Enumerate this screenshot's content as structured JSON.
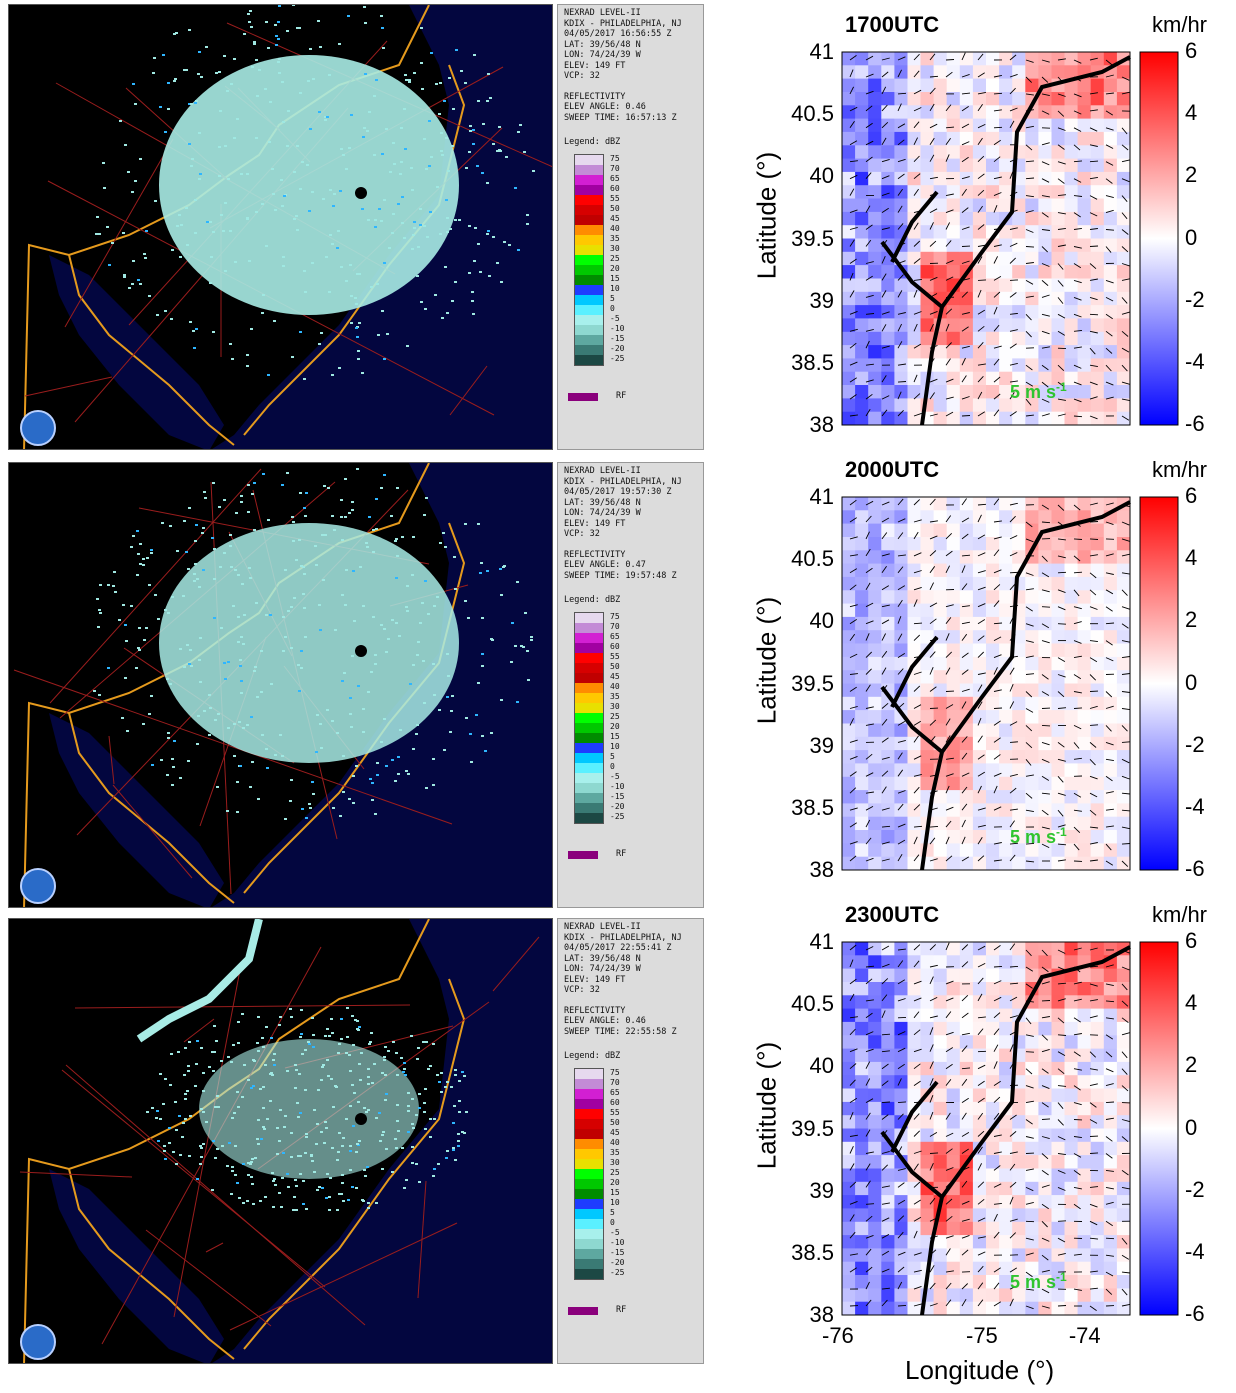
{
  "radar": {
    "header": "NEXRAD LEVEL-II",
    "station": "KDIX - PHILADELPHIA, NJ",
    "lat": "LAT: 39/56/48 N",
    "lon": "LON: 74/24/39 W",
    "elev": "ELEV: 149 FT",
    "vcp": "VCP: 32",
    "product": "REFLECTIVITY",
    "legend_title": "Legend: dBZ",
    "legend_values": [
      "75",
      "70",
      "65",
      "60",
      "55",
      "50",
      "45",
      "40",
      "35",
      "30",
      "25",
      "20",
      "15",
      "10",
      "5",
      "0",
      "-5",
      "-10",
      "-15",
      "-20",
      "-25"
    ],
    "legend_colors": [
      "#e6d9ee",
      "#c38bd6",
      "#d21fd2",
      "#a100a1",
      "#ff0000",
      "#d60000",
      "#c00000",
      "#ff8c00",
      "#ffc800",
      "#e8e000",
      "#00ff00",
      "#00c800",
      "#008c00",
      "#1e3cff",
      "#00c8ff",
      "#5af0ff",
      "#a8f0ec",
      "#8ed8d0",
      "#5ea8a0",
      "#3a7a74",
      "#1c4844"
    ],
    "rf_label": "RF",
    "scans": [
      {
        "date": "04/05/2017 16:56:55 Z",
        "elev_angle": "ELEV ANGLE: 0.46",
        "sweep_time": "SWEEP TIME: 16:57:13 Z"
      },
      {
        "date": "04/05/2017 19:57:30 Z",
        "elev_angle": "ELEV ANGLE: 0.47",
        "sweep_time": "SWEEP TIME: 19:57:48 Z"
      },
      {
        "date": "04/05/2017 22:55:41 Z",
        "elev_angle": "ELEV ANGLE: 0.46",
        "sweep_time": "SWEEP TIME: 22:55:58 Z"
      }
    ]
  },
  "model": {
    "unit": "km/hr",
    "ylabel": "Latitude (°)",
    "xlabel": "Longitude (°)",
    "yticks": [
      "41",
      "40.5",
      "40",
      "39.5",
      "39",
      "38.5",
      "38"
    ],
    "xticks": [
      "-76",
      "-75",
      "-74"
    ],
    "colorbar_ticks": [
      "6",
      "4",
      "2",
      "0",
      "-2",
      "-4",
      "-6"
    ],
    "colorbar_range": [
      -6,
      6
    ],
    "colorbar_colors": {
      "high": "#ff0000",
      "mid": "#ffffff",
      "low": "#0000ff"
    },
    "vector_scale_label": "5 m s",
    "vector_scale_sup": "-1",
    "panels": [
      {
        "title": "1700UTC"
      },
      {
        "title": "2000UTC"
      },
      {
        "title": "2300UTC"
      }
    ]
  }
}
